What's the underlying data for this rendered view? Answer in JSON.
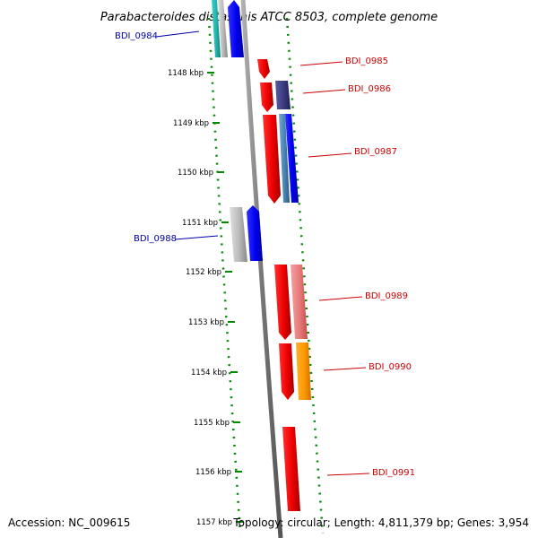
{
  "title": "Parabacteroides distasonis ATCC 8503, complete genome",
  "footer": {
    "accession": "Accession: NC_009615",
    "info": "Topology: circular; Length: 4,811,379 bp; Genes: 3,954"
  },
  "scale_ticks": [
    {
      "label": "1148 kbp",
      "kbp": 1148
    },
    {
      "label": "1149 kbp",
      "kbp": 1149
    },
    {
      "label": "1150 kbp",
      "kbp": 1150
    },
    {
      "label": "1151 kbp",
      "kbp": 1151
    },
    {
      "label": "1152 kbp",
      "kbp": 1152
    },
    {
      "label": "1153 kbp",
      "kbp": 1153
    },
    {
      "label": "1154 kbp",
      "kbp": 1154
    },
    {
      "label": "1155 kbp",
      "kbp": 1155
    },
    {
      "label": "1156 kbp",
      "kbp": 1156
    },
    {
      "label": "1157 kbp",
      "kbp": 1157
    }
  ],
  "gene_labels": [
    {
      "name": "BDI_0984",
      "strand": "reverse"
    },
    {
      "name": "BDI_0985",
      "strand": "forward"
    },
    {
      "name": "BDI_0986",
      "strand": "forward"
    },
    {
      "name": "BDI_0987",
      "strand": "forward"
    },
    {
      "name": "BDI_0988",
      "strand": "reverse"
    },
    {
      "name": "BDI_0989",
      "strand": "forward"
    },
    {
      "name": "BDI_0990",
      "strand": "forward"
    },
    {
      "name": "BDI_0991",
      "strand": "forward"
    }
  ],
  "colors": {
    "forward_label": "#cc0000",
    "reverse_label": "#0000aa",
    "backbone": "#808080",
    "ticks": "#008800",
    "forward_gene": "#ff0000",
    "reverse_gene": "#0000ff",
    "feature_grey": "#b0b0b0",
    "feature_pink": "#e88080",
    "feature_orange": "#ff9900",
    "feature_slate": "#4682b4",
    "feature_navy": "#3a3a80",
    "feature_teal": "#20b2aa"
  }
}
